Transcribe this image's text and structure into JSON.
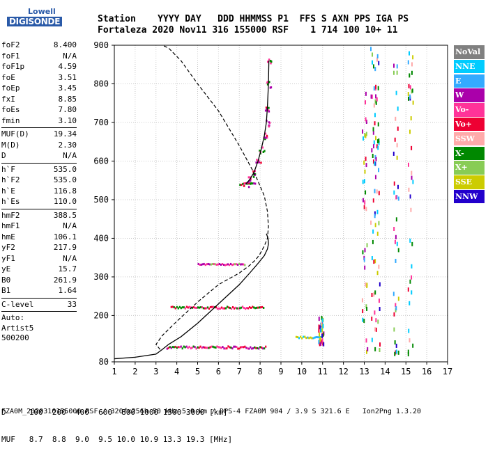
{
  "logo": {
    "lowell": "Lowell",
    "digisonde": "DIGISONDE"
  },
  "header": {
    "row1": "Station    YYYY DAY   DDD HHMMSS P1  FFS S AXN PPS IGA PS",
    "row2": "Fortaleza 2020 Nov11 316 155000 RSF    1 714 100 10+ 11"
  },
  "params": {
    "group1": [
      {
        "label": "foF2",
        "value": "8.400"
      },
      {
        "label": "foF1",
        "value": "N/A"
      },
      {
        "label": "foF1p",
        "value": "4.59"
      },
      {
        "label": "foE",
        "value": "3.51"
      },
      {
        "label": "foEp",
        "value": "3.45"
      },
      {
        "label": "fxI",
        "value": "8.85"
      },
      {
        "label": "foEs",
        "value": "7.80"
      },
      {
        "label": "fmin",
        "value": "3.10"
      }
    ],
    "group2": [
      {
        "label": "MUF(D)",
        "value": "19.34"
      },
      {
        "label": "M(D)",
        "value": "2.30"
      },
      {
        "label": "D",
        "value": "N/A"
      }
    ],
    "group3": [
      {
        "label": "h`F",
        "value": "535.0"
      },
      {
        "label": "h`F2",
        "value": "535.0"
      },
      {
        "label": "h`E",
        "value": "116.8"
      },
      {
        "label": "h`Es",
        "value": "110.0"
      }
    ],
    "group4": [
      {
        "label": "hmF2",
        "value": "388.5"
      },
      {
        "label": "hmF1",
        "value": "N/A"
      },
      {
        "label": "hmE",
        "value": "106.1"
      },
      {
        "label": "yF2",
        "value": "217.9"
      },
      {
        "label": "yF1",
        "value": "N/A"
      },
      {
        "label": "yE",
        "value": "15.7"
      },
      {
        "label": "B0",
        "value": "261.9"
      },
      {
        "label": "B1",
        "value": "1.64"
      }
    ],
    "group5": [
      {
        "label": "C-level",
        "value": "33"
      }
    ],
    "auto": [
      "Auto:",
      "Artist5",
      "500200"
    ]
  },
  "bottom": {
    "d_row": "D     100  200  400  600  800 1000 1500 3000 [km]",
    "muf_row": "MUF   8.7  8.8  9.0  9.5 10.0 10.9 13.3 19.3 [MHz]"
  },
  "footer": "FZA0M_2020316155000.RSF / 320fx256h 50 kHz 5.0 km / DPS-4 FZA0M 904 / 3.9 S 321.6 E   Ion2Png 1.3.20",
  "legend": [
    {
      "label": "NoVal",
      "color": "#808080"
    },
    {
      "label": "NNE",
      "color": "#00ccff"
    },
    {
      "label": "E",
      "color": "#33aaff"
    },
    {
      "label": "W",
      "color": "#aa00aa"
    },
    {
      "label": "Vo-",
      "color": "#ff3399"
    },
    {
      "label": "Vo+",
      "color": "#ee0033"
    },
    {
      "label": "SSW",
      "color": "#ffaaaa"
    },
    {
      "label": "X-",
      "color": "#008800"
    },
    {
      "label": "X+",
      "color": "#88cc55"
    },
    {
      "label": "SSE",
      "color": "#cccc00"
    },
    {
      "label": "NNW",
      "color": "#2200cc"
    }
  ],
  "chart_data": {
    "type": "scatter",
    "x_ticks": [
      1,
      2,
      3,
      4,
      5,
      6,
      7,
      8,
      9,
      10,
      11,
      12,
      13,
      14,
      15,
      16,
      17
    ],
    "y_ticks": [
      80,
      200,
      300,
      400,
      500,
      600,
      700,
      800,
      900
    ],
    "xlim": [
      1,
      17
    ],
    "ylim": [
      80,
      900
    ],
    "grid": true,
    "grid_color": "#c8c8c8",
    "profile_curve": {
      "x": [
        1.0,
        2.0,
        3.0,
        3.3,
        3.6,
        4.2,
        5.0,
        6.0,
        7.0,
        7.5,
        7.9,
        8.2,
        8.35,
        8.4,
        8.38,
        8.3
      ],
      "y": [
        88,
        92,
        100,
        112,
        125,
        145,
        180,
        230,
        280,
        310,
        335,
        355,
        372,
        385,
        400,
        412
      ]
    },
    "trace_curve": {
      "x": [
        7.3,
        7.5,
        7.7,
        7.9,
        8.05,
        8.2,
        8.3,
        8.35,
        8.4,
        8.42
      ],
      "y": [
        540,
        552,
        570,
        600,
        630,
        665,
        700,
        740,
        800,
        860
      ]
    },
    "dashed_curve": {
      "x": [
        3.2,
        3.0,
        3.3,
        4.0,
        5.0,
        6.0,
        7.0,
        7.5,
        7.8,
        8.0,
        8.2,
        8.35,
        8.4,
        8.35,
        8.2,
        7.8,
        7.0,
        6.0,
        5.0,
        4.2,
        3.6,
        3.3
      ],
      "y": [
        112,
        125,
        148,
        185,
        235,
        280,
        310,
        330,
        345,
        360,
        380,
        400,
        430,
        470,
        510,
        560,
        640,
        730,
        800,
        860,
        893,
        900
      ]
    },
    "traces": [
      {
        "x0": 3.5,
        "x1": 8.3,
        "y": 117,
        "dy": 6,
        "colors": [
          "#ee0033",
          "#ff3399",
          "#008800",
          "#aa00aa"
        ]
      },
      {
        "x0": 3.7,
        "x1": 8.2,
        "y": 220,
        "dy": 5,
        "colors": [
          "#ff3399",
          "#008800",
          "#ee0033"
        ]
      },
      {
        "x0": 5.0,
        "x1": 7.3,
        "y": 332,
        "dy": 3,
        "colors": [
          "#ff3399",
          "#88cc55",
          "#aa00aa"
        ]
      },
      {
        "x0": 7.0,
        "x1": 7.8,
        "y": 540,
        "dy": 6,
        "colors": [
          "#ee0033",
          "#008800",
          "#aa00aa"
        ]
      },
      {
        "x0": 9.7,
        "x1": 11.0,
        "y": 143,
        "dy": 4,
        "colors": [
          "#cccc00",
          "#33aaff",
          "#00ccff"
        ]
      }
    ],
    "columns": [
      {
        "x": 13.0,
        "y0": 110,
        "y1": 800
      },
      {
        "x": 13.4,
        "y0": 100,
        "y1": 900
      },
      {
        "x": 13.6,
        "y0": 100,
        "y1": 880
      },
      {
        "x": 14.5,
        "y0": 100,
        "y1": 900
      },
      {
        "x": 15.2,
        "y0": 100,
        "y1": 900
      },
      {
        "x": 10.9,
        "y0": 130,
        "y1": 200
      }
    ]
  }
}
